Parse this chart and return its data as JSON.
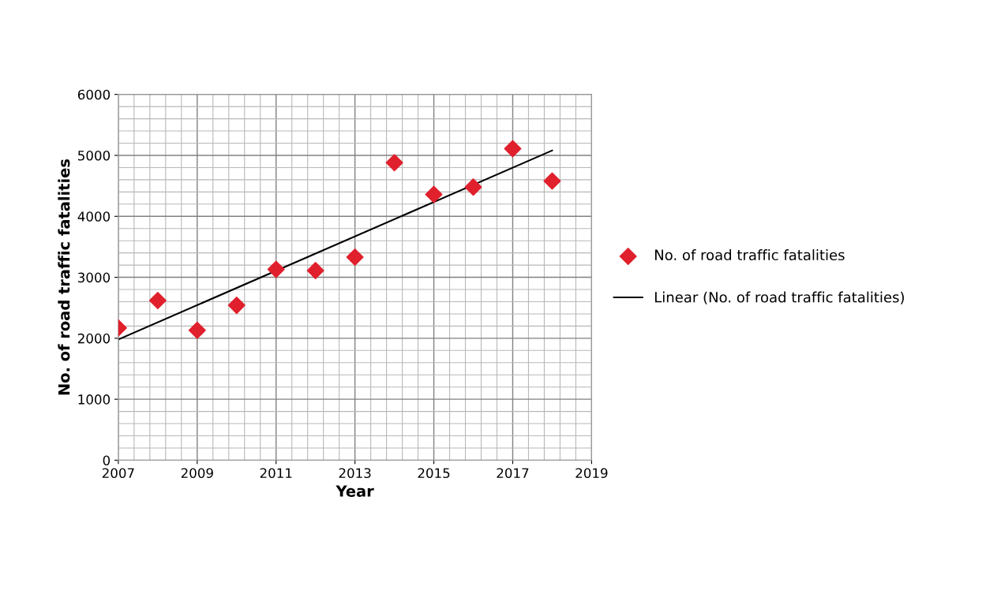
{
  "chart_data": {
    "type": "scatter",
    "xlabel": "Year",
    "ylabel": "No. of road traffic fatalities",
    "x": [
      2007,
      2008,
      2009,
      2010,
      2011,
      2012,
      2013,
      2014,
      2015,
      2016,
      2017,
      2018
    ],
    "series": [
      {
        "name": "No. of road traffic fatalities",
        "color": "#e0202c",
        "marker": "diamond",
        "values": [
          2170,
          2620,
          2130,
          2540,
          3130,
          3110,
          3330,
          4880,
          4360,
          4480,
          5110,
          4580
        ]
      },
      {
        "name": "Linear (No. of road traffic fatalities)",
        "type": "line",
        "color": "#000000",
        "marker": "none",
        "line_style": "solid",
        "x": [
          2007,
          2018
        ],
        "values": [
          1980,
          5080
        ]
      }
    ],
    "xlim": [
      2007,
      2019
    ],
    "xticks": [
      2007,
      2009,
      2011,
      2013,
      2015,
      2017,
      2019
    ],
    "ylim": [
      0,
      6000
    ],
    "yticks": [
      0,
      1000,
      2000,
      3000,
      4000,
      5000,
      6000
    ],
    "grid": true,
    "legend": "right"
  }
}
